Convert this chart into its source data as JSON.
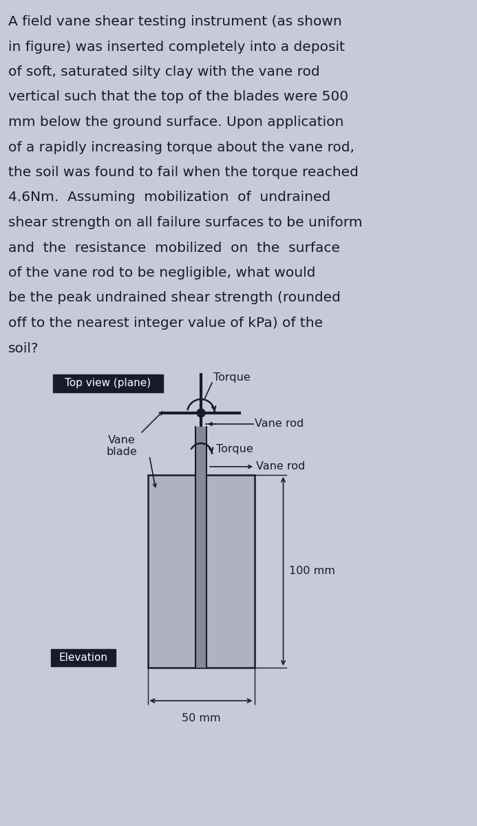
{
  "background_color": "#c8cad8",
  "text_color": "#1a1a2e",
  "lines": [
    "A field vane shear testing instrument (as shown",
    "in figure) was inserted completely into a deposit",
    "of soft, saturated silty clay with the vane rod",
    "vertical such that the top of the blades were 500",
    "mm below the ground surface. Upon application",
    "of a rapidly increasing torque about the vane rod,",
    "the soil was found to fail when the torque reached",
    "4.6Nm.  Assuming  mobilization  of  undrained",
    "shear strength on all failure surfaces to be uniform",
    "and  the  resistance  mobilized  on  the  surface",
    "of the vane rod to be negligible, what would",
    "be the peak undrained shear strength (rounded",
    "off to the nearest integer value of kPa) of the",
    "soil?"
  ],
  "top_view_label": "Top view (plane)",
  "torque_label_top": "Torque",
  "vane_rod_label_top": "Vane rod",
  "vane_blade_label": "Vane\nblade",
  "torque_label_elev": "Torque",
  "vane_rod_label_elev": "Vane rod",
  "dim_100mm": "100 mm",
  "dim_50mm": "50 mm",
  "elevation_label": "Elevation",
  "font_size_para": 14.5,
  "font_size_labels": 11.5,
  "font_size_box_label": 11.0
}
